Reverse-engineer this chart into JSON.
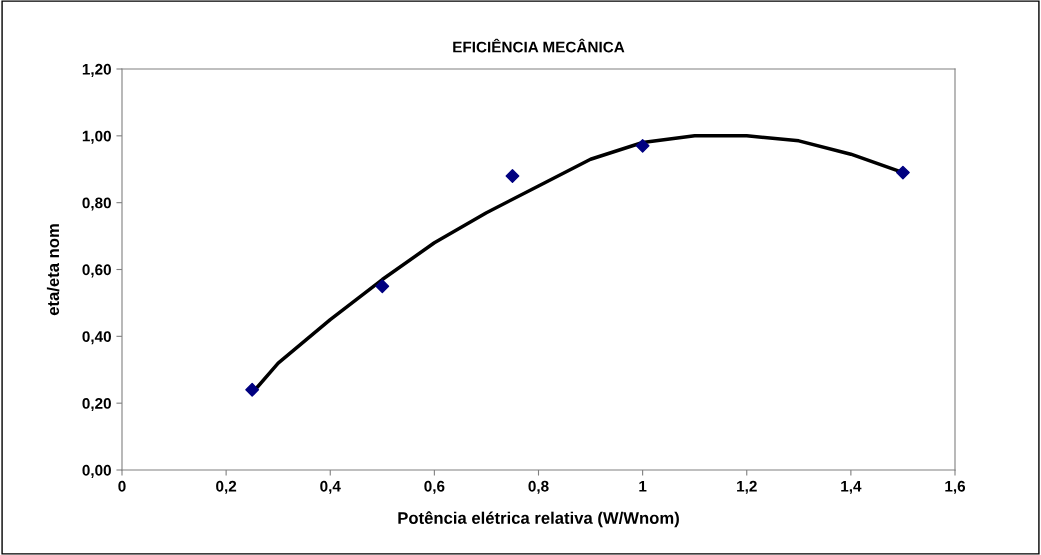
{
  "chart_data": {
    "type": "scatter",
    "title": "EFICIÊNCIA MECÂNICA",
    "xlabel": "Potência elétrica relativa (W/Wnom)",
    "ylabel": "eta/eta nom",
    "series": [
      {
        "color": "#000080",
        "marker": "diamond",
        "x": [
          0.25,
          0.5,
          0.75,
          1.0,
          1.5
        ],
        "values": [
          0.24,
          0.55,
          0.88,
          0.97,
          0.89
        ]
      },
      {
        "type": "line",
        "color": "#000000",
        "marker": "none",
        "line_style": "solid",
        "x": [
          0.25,
          0.3,
          0.4,
          0.5,
          0.6,
          0.7,
          0.8,
          0.9,
          1.0,
          1.1,
          1.2,
          1.3,
          1.4,
          1.5
        ],
        "values": [
          0.23,
          0.32,
          0.45,
          0.57,
          0.68,
          0.77,
          0.85,
          0.93,
          0.98,
          1.0,
          1.0,
          0.985,
          0.945,
          0.89
        ]
      }
    ],
    "xlim": [
      0,
      1.6
    ],
    "xticks": [
      0,
      {
        "value": 0.2,
        "label": "0,2"
      },
      {
        "value": 0.4,
        "label": "0,4"
      },
      {
        "value": 0.6,
        "label": "0,6"
      },
      {
        "value": 0.8,
        "label": "0,8"
      },
      1,
      {
        "value": 1.2,
        "label": "1,2"
      },
      {
        "value": 1.4,
        "label": "1,4"
      },
      {
        "value": 1.6,
        "label": "1,6"
      }
    ],
    "ylim": [
      0,
      1.2
    ],
    "yticks": [
      {
        "value": 0,
        "label": "0,00"
      },
      {
        "value": 0.2,
        "label": "0,20"
      },
      {
        "value": 0.4,
        "label": "0,40"
      },
      {
        "value": 0.6,
        "label": "0,60"
      },
      {
        "value": 0.8,
        "label": "0,80"
      },
      {
        "value": 1.0,
        "label": "1,00"
      },
      {
        "value": 1.2,
        "label": "1,20"
      }
    ],
    "grid": false,
    "legend": false
  }
}
